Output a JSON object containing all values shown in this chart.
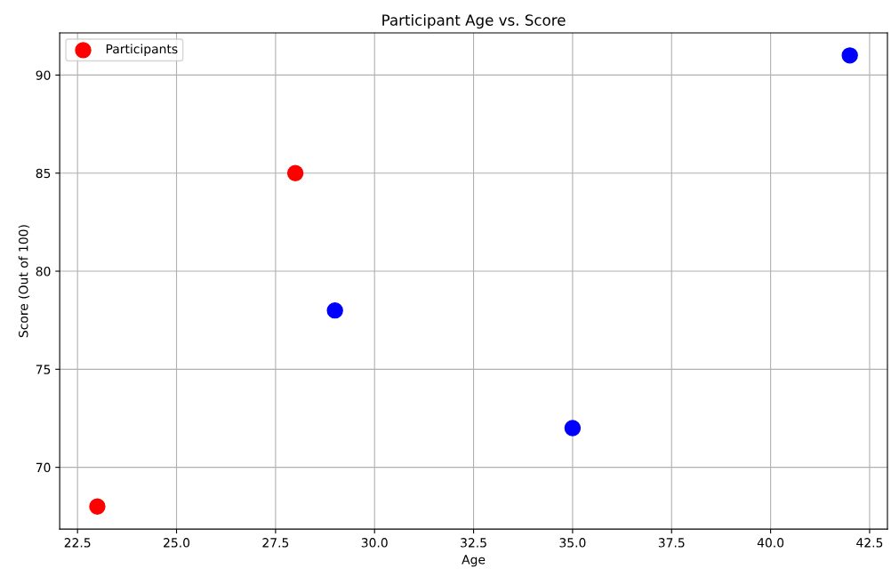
{
  "chart_data": {
    "type": "scatter",
    "title": "Participant Age vs. Score",
    "xlabel": "Age",
    "ylabel": "Score (Out of 100)",
    "x": [
      23,
      28,
      29,
      35,
      42
    ],
    "series": [
      {
        "name": "Participants",
        "colors": [
          "#ff0000",
          "#ff0000",
          "#0000ff",
          "#0000ff",
          "#0000ff"
        ],
        "values": [
          68,
          85,
          78,
          72,
          91
        ]
      }
    ],
    "xlim": [
      22.05,
      42.95
    ],
    "xticks": [
      22.5,
      {
        "value": 25,
        "label": "25.0"
      },
      27.5,
      {
        "value": 30,
        "label": "30.0"
      },
      32.5,
      {
        "value": 35,
        "label": "35.0"
      },
      37.5,
      {
        "value": 40,
        "label": "40.0"
      },
      42.5
    ],
    "ylim": [
      66.85,
      92.15
    ],
    "yticks": [
      70,
      75,
      80,
      85,
      90
    ],
    "grid": true,
    "legend": "top left",
    "marker": "circle"
  }
}
